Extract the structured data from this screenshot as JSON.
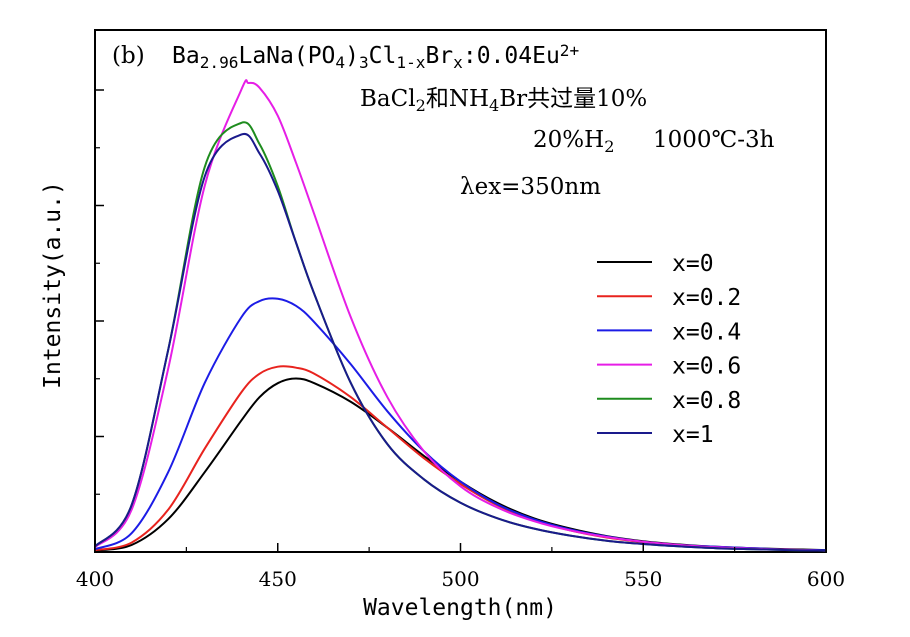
{
  "chart_data": {
    "type": "line",
    "label": "(b)",
    "formula": {
      "parts": [
        {
          "t": "Ba",
          "s": "n"
        },
        {
          "t": "2.96",
          "s": "sub"
        },
        {
          "t": "LaNa(PO",
          "s": "n"
        },
        {
          "t": "4",
          "s": "sub"
        },
        {
          "t": ")",
          "s": "n"
        },
        {
          "t": "3",
          "s": "sub"
        },
        {
          "t": "Cl",
          "s": "n"
        },
        {
          "t": "1-x",
          "s": "sub"
        },
        {
          "t": "Br",
          "s": "n"
        },
        {
          "t": "x",
          "s": "sub"
        },
        {
          "t": ":0.04Eu",
          "s": "n"
        },
        {
          "t": "2+",
          "s": "sup"
        }
      ]
    },
    "annotation_excess": {
      "parts": [
        {
          "t": "BaCl",
          "s": "n"
        },
        {
          "t": "2",
          "s": "sub"
        },
        {
          "t": "和NH",
          "s": "n"
        },
        {
          "t": "4",
          "s": "sub"
        },
        {
          "t": "Br共过量10%",
          "s": "n"
        }
      ]
    },
    "annotation_atmosphere": {
      "parts": [
        {
          "t": "20%H",
          "s": "n"
        },
        {
          "t": "2",
          "s": "sub"
        }
      ]
    },
    "annotation_condition": "1000℃-3h",
    "annotation_excitation": "λex=350nm",
    "xlabel": "Wavelength(nm)",
    "ylabel": "Intensity(a.u.)",
    "xlim": [
      400,
      600
    ],
    "ylim": [
      0,
      1.0
    ],
    "x_ticks": [
      400,
      450,
      500,
      550,
      600
    ],
    "y_tick_labels_shown": false,
    "legend_position": "right",
    "series": [
      {
        "name": "x=0",
        "color": "#000000",
        "x": [
          400,
          410,
          420,
          430,
          440,
          445,
          450,
          455,
          460,
          470,
          480,
          490,
          500,
          510,
          520,
          530,
          540,
          550,
          560,
          570,
          580,
          590,
          600
        ],
        "y": [
          0.003,
          0.015,
          0.07,
          0.17,
          0.28,
          0.33,
          0.36,
          0.37,
          0.36,
          0.32,
          0.265,
          0.205,
          0.15,
          0.105,
          0.072,
          0.05,
          0.034,
          0.023,
          0.016,
          0.011,
          0.008,
          0.006,
          0.004
        ]
      },
      {
        "name": "x=0.2",
        "color": "#e8231e",
        "x": [
          400,
          410,
          420,
          430,
          440,
          445,
          450,
          455,
          460,
          470,
          480,
          490,
          500,
          510,
          520,
          530,
          540,
          550,
          560,
          570,
          580,
          590,
          600
        ],
        "y": [
          0.004,
          0.02,
          0.09,
          0.22,
          0.34,
          0.38,
          0.395,
          0.393,
          0.38,
          0.33,
          0.265,
          0.2,
          0.145,
          0.1,
          0.068,
          0.046,
          0.031,
          0.021,
          0.014,
          0.01,
          0.007,
          0.005,
          0.003
        ]
      },
      {
        "name": "x=0.4",
        "color": "#1c1ce6",
        "x": [
          400,
          410,
          420,
          430,
          440,
          445,
          450,
          455,
          460,
          470,
          480,
          490,
          500,
          510,
          520,
          530,
          540,
          550,
          560,
          570,
          580,
          590,
          600
        ],
        "y": [
          0.006,
          0.04,
          0.17,
          0.36,
          0.5,
          0.535,
          0.54,
          0.525,
          0.49,
          0.4,
          0.3,
          0.215,
          0.15,
          0.102,
          0.07,
          0.048,
          0.033,
          0.022,
          0.015,
          0.011,
          0.008,
          0.005,
          0.004
        ]
      },
      {
        "name": "x=0.6",
        "color": "#e61ee6",
        "x": [
          400,
          410,
          420,
          430,
          440,
          442,
          445,
          450,
          455,
          460,
          470,
          480,
          490,
          500,
          510,
          520,
          530,
          540,
          550,
          560,
          570,
          580,
          590,
          600
        ],
        "y": [
          0.01,
          0.09,
          0.39,
          0.78,
          0.985,
          1.0,
          0.99,
          0.93,
          0.83,
          0.72,
          0.5,
          0.33,
          0.215,
          0.14,
          0.095,
          0.066,
          0.046,
          0.032,
          0.022,
          0.015,
          0.01,
          0.007,
          0.005,
          0.003
        ]
      },
      {
        "name": "x=0.8",
        "color": "#1e8c1e",
        "x": [
          400,
          410,
          420,
          430,
          440,
          445,
          450,
          455,
          460,
          470,
          480,
          490,
          500,
          510,
          520,
          530,
          540,
          550,
          560,
          570,
          580,
          590,
          600
        ],
        "y": [
          0.012,
          0.1,
          0.43,
          0.82,
          0.915,
          0.87,
          0.78,
          0.66,
          0.55,
          0.36,
          0.23,
          0.155,
          0.105,
          0.072,
          0.05,
          0.035,
          0.024,
          0.017,
          0.012,
          0.008,
          0.006,
          0.004,
          0.003
        ]
      },
      {
        "name": "x=1",
        "color": "#1a1a8c",
        "x": [
          400,
          410,
          420,
          430,
          440,
          445,
          450,
          455,
          460,
          470,
          480,
          490,
          500,
          510,
          520,
          530,
          540,
          550,
          560,
          570,
          580,
          590,
          600
        ],
        "y": [
          0.012,
          0.1,
          0.43,
          0.8,
          0.89,
          0.85,
          0.77,
          0.66,
          0.55,
          0.36,
          0.23,
          0.155,
          0.105,
          0.072,
          0.05,
          0.035,
          0.024,
          0.017,
          0.012,
          0.008,
          0.006,
          0.004,
          0.003
        ]
      }
    ]
  }
}
